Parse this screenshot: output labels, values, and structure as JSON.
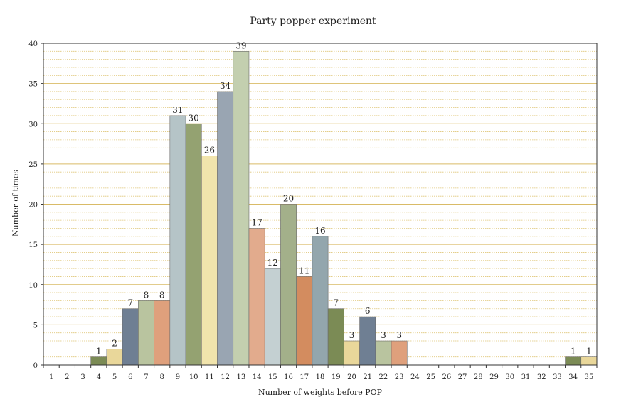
{
  "chart_data": {
    "type": "bar",
    "title": "Party popper experiment",
    "xlabel": "Number of weights before POP",
    "ylabel": "Number of times",
    "categories": [
      "1",
      "2",
      "3",
      "4",
      "5",
      "6",
      "7",
      "8",
      "9",
      "10",
      "11",
      "12",
      "13",
      "14",
      "15",
      "16",
      "17",
      "18",
      "19",
      "20",
      "21",
      "22",
      "23",
      "24",
      "25",
      "26",
      "27",
      "28",
      "29",
      "30",
      "31",
      "32",
      "33",
      "34",
      "35"
    ],
    "values": [
      0,
      0,
      0,
      1,
      2,
      7,
      8,
      8,
      31,
      30,
      26,
      34,
      39,
      17,
      12,
      20,
      11,
      16,
      7,
      3,
      6,
      3,
      3,
      0,
      0,
      0,
      0,
      0,
      0,
      0,
      0,
      0,
      0,
      1,
      1
    ],
    "ylim": [
      0,
      40
    ],
    "yticks": [
      0,
      5,
      10,
      15,
      20,
      25,
      30,
      35,
      40
    ],
    "grid": true,
    "bar_colors": [
      "#a3b08a",
      "#d38c5f",
      "#93a6ad",
      "#7b8b55",
      "#e9d79a",
      "#6f7f93",
      "#b9c49f",
      "#dfa07c",
      "#b5c4c7",
      "#94a271",
      "#f1e4ac",
      "#99a5b2",
      "#c3cfaf",
      "#e2ab8d",
      "#c4d0d2"
    ]
  }
}
